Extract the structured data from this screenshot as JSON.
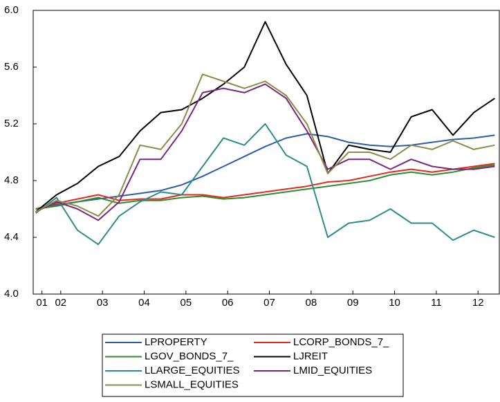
{
  "chart_data": {
    "type": "line",
    "x": [
      1.4,
      1.9,
      2.4,
      2.9,
      3.4,
      3.9,
      4.4,
      4.9,
      5.4,
      5.9,
      6.4,
      6.9,
      7.4,
      7.9,
      8.4,
      8.9,
      9.4,
      9.9,
      10.4,
      10.9,
      11.4,
      11.9,
      12.4
    ],
    "xlim": [
      1.34,
      12.51
    ],
    "xticks": [
      {
        "value": 1.55,
        "label": "01"
      },
      {
        "value": 2,
        "label": "02"
      },
      {
        "value": 3,
        "label": "03"
      },
      {
        "value": 4,
        "label": "04"
      },
      {
        "value": 5,
        "label": "05"
      },
      {
        "value": 6,
        "label": "06"
      },
      {
        "value": 7,
        "label": "07"
      },
      {
        "value": 8,
        "label": "08"
      },
      {
        "value": 9,
        "label": "09"
      },
      {
        "value": 10,
        "label": "10"
      },
      {
        "value": 11,
        "label": "11"
      },
      {
        "value": 12,
        "label": "12"
      }
    ],
    "ylim": [
      4.0,
      6.0
    ],
    "yticks": [
      {
        "value": 4.0,
        "label": "4.0"
      },
      {
        "value": 4.4,
        "label": "4.4"
      },
      {
        "value": 4.8,
        "label": "4.8"
      },
      {
        "value": 5.2,
        "label": "5.2"
      },
      {
        "value": 5.6,
        "label": "5.6"
      },
      {
        "value": 6.0,
        "label": "6.0"
      }
    ],
    "grid": false,
    "legend": "bottom",
    "series": [
      {
        "name": "LPROPERTY",
        "color": "#2a5caa",
        "values": [
          4.6,
          4.63,
          4.65,
          4.67,
          4.69,
          4.71,
          4.73,
          4.77,
          4.83,
          4.9,
          4.97,
          5.04,
          5.1,
          5.13,
          5.11,
          5.07,
          5.05,
          5.04,
          5.05,
          5.07,
          5.09,
          5.1,
          5.12
        ]
      },
      {
        "name": "LCORP_BONDS_7_",
        "color": "#e8271c",
        "values": [
          4.6,
          4.64,
          4.67,
          4.7,
          4.66,
          4.67,
          4.67,
          4.7,
          4.7,
          4.68,
          4.7,
          4.72,
          4.74,
          4.76,
          4.79,
          4.8,
          4.83,
          4.86,
          4.88,
          4.86,
          4.88,
          4.9,
          4.92
        ]
      },
      {
        "name": "LGOV_BONDS_7_",
        "color": "#2e8b2e",
        "values": [
          4.6,
          4.62,
          4.65,
          4.68,
          4.64,
          4.66,
          4.66,
          4.68,
          4.69,
          4.67,
          4.68,
          4.7,
          4.72,
          4.74,
          4.76,
          4.78,
          4.8,
          4.84,
          4.86,
          4.84,
          4.86,
          4.89,
          4.91
        ]
      },
      {
        "name": "LJREIT",
        "color": "#000000",
        "values": [
          4.58,
          4.7,
          4.78,
          4.9,
          4.97,
          5.15,
          5.28,
          5.3,
          5.38,
          5.48,
          5.6,
          5.92,
          5.62,
          5.4,
          4.85,
          5.05,
          5.02,
          5.0,
          5.25,
          5.3,
          5.12,
          5.28,
          5.38
        ]
      },
      {
        "name": "LLARGE_EQUITIES",
        "color": "#2e8b8b",
        "values": [
          4.57,
          4.68,
          4.45,
          4.35,
          4.55,
          4.65,
          4.72,
          4.7,
          4.9,
          5.1,
          5.05,
          5.2,
          4.98,
          4.9,
          4.4,
          4.5,
          4.52,
          4.6,
          4.5,
          4.5,
          4.38,
          4.45,
          4.4
        ]
      },
      {
        "name": "LMID_EQUITIES",
        "color": "#7b267b",
        "values": [
          4.58,
          4.65,
          4.6,
          4.52,
          4.65,
          4.95,
          4.95,
          5.15,
          5.42,
          5.45,
          5.42,
          5.48,
          5.38,
          5.15,
          4.88,
          4.95,
          4.95,
          4.88,
          4.95,
          4.9,
          4.88,
          4.88,
          4.9
        ]
      },
      {
        "name": "LSMALL_EQUITIES",
        "color": "#8b8b4a",
        "values": [
          4.58,
          4.66,
          4.62,
          4.55,
          4.7,
          5.05,
          5.02,
          5.2,
          5.55,
          5.5,
          5.45,
          5.5,
          5.4,
          5.2,
          4.85,
          5.0,
          5.0,
          4.95,
          5.05,
          5.02,
          5.08,
          5.02,
          5.05
        ]
      }
    ]
  }
}
